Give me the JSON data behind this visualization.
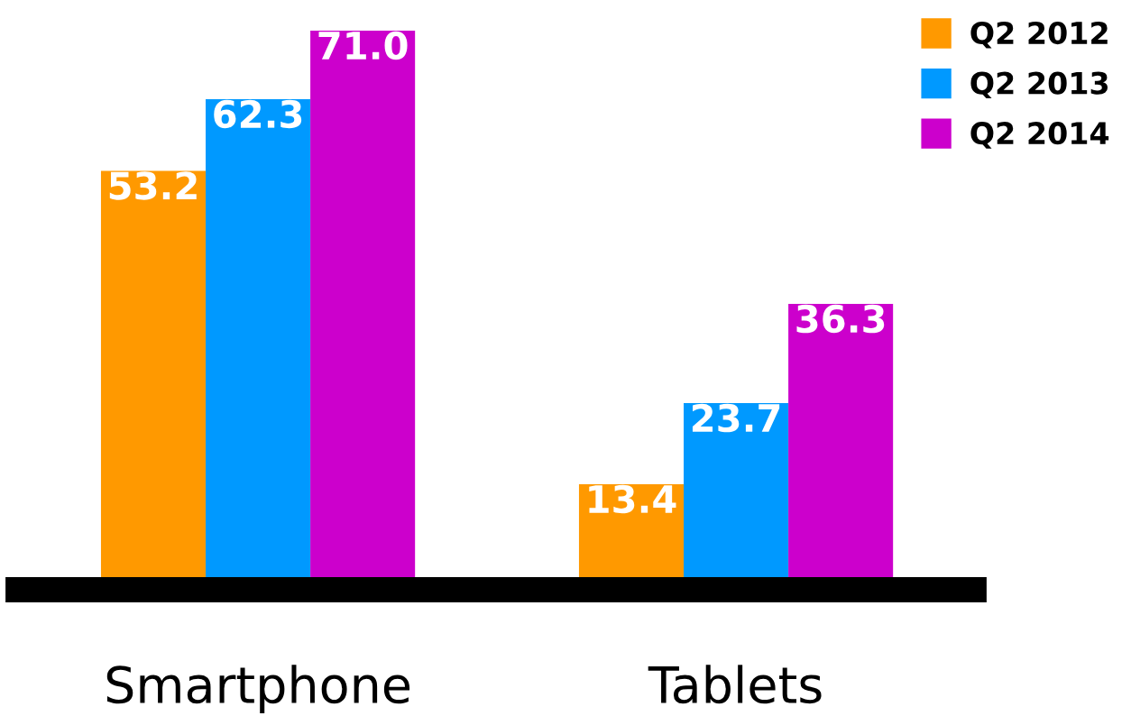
{
  "chart_data": {
    "type": "bar",
    "categories": [
      "Smartphone",
      "Tablets"
    ],
    "series": [
      {
        "name": "Q2 2012",
        "color": "#ff9900",
        "values": [
          53.2,
          13.4
        ],
        "value_labels": [
          "53.2",
          "13.4"
        ]
      },
      {
        "name": "Q2 2013",
        "color": "#0099ff",
        "values": [
          62.3,
          23.7
        ],
        "value_labels": [
          "62.3",
          "23.7"
        ]
      },
      {
        "name": "Q2 2014",
        "color": "#cc00cc",
        "values": [
          71.0,
          36.3
        ],
        "value_labels": [
          "71.0",
          "36.3"
        ]
      }
    ],
    "legend": "top right",
    "grid": false
  }
}
